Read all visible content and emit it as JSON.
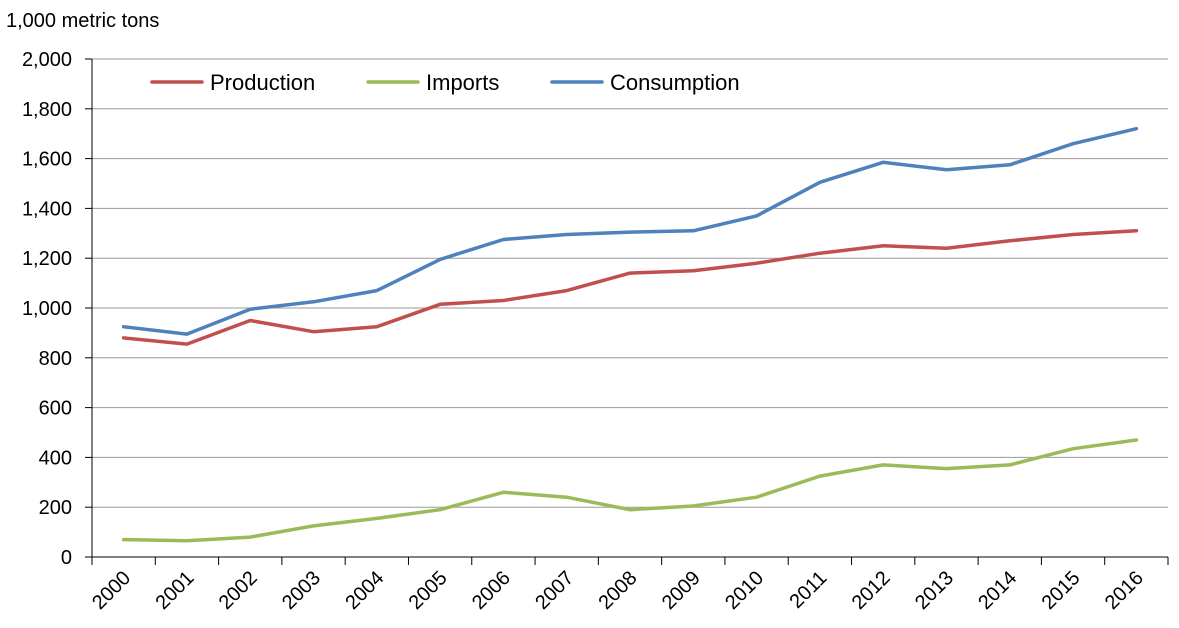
{
  "chart_data": {
    "type": "line",
    "title": "",
    "xlabel": "",
    "ylabel": "1,000 metric tons",
    "ylim": [
      0,
      2000
    ],
    "yticks": [
      0,
      200,
      400,
      600,
      800,
      1000,
      1200,
      1400,
      1600,
      1800,
      2000
    ],
    "ytick_labels": [
      "0",
      "200",
      "400",
      "600",
      "800",
      "1,000",
      "1,200",
      "1,400",
      "1,600",
      "1,800",
      "2,000"
    ],
    "categories": [
      "2000",
      "2001",
      "2002",
      "2003",
      "2004",
      "2005",
      "2006",
      "2007",
      "2008",
      "2009",
      "2010",
      "2011",
      "2012",
      "2013",
      "2014",
      "2015",
      "2016"
    ],
    "grid": true,
    "legend_position": "top-left",
    "series": [
      {
        "name": "Production",
        "color": "#c0504d",
        "values": [
          880,
          855,
          950,
          905,
          925,
          1015,
          1030,
          1070,
          1140,
          1150,
          1180,
          1220,
          1250,
          1240,
          1270,
          1295,
          1310
        ]
      },
      {
        "name": "Imports",
        "color": "#9bbb59",
        "values": [
          70,
          65,
          80,
          125,
          155,
          190,
          260,
          240,
          190,
          205,
          240,
          325,
          370,
          355,
          370,
          435,
          470
        ]
      },
      {
        "name": "Consumption",
        "color": "#4f81bd",
        "values": [
          925,
          895,
          995,
          1025,
          1070,
          1195,
          1275,
          1295,
          1305,
          1310,
          1370,
          1505,
          1585,
          1555,
          1575,
          1660,
          1720
        ]
      }
    ]
  }
}
